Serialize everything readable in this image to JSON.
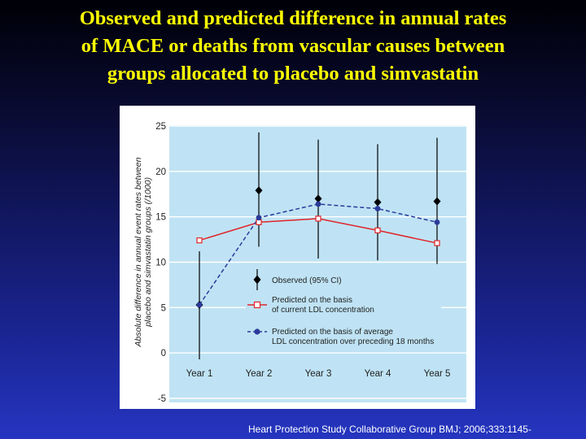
{
  "slide": {
    "title_lines": [
      "Observed and predicted difference in annual rates",
      "of MACE or deaths from vascular causes between",
      "groups allocated to placebo and simvastatin"
    ],
    "citation": "Heart Protection Study Collaborative Group BMJ; 2006;333:1145-"
  },
  "chart_data": {
    "type": "line",
    "ylabel_lines": [
      "Absolute difference in annual event rates between",
      "placebo and simvastatin groups (/1000)"
    ],
    "xlabel": "",
    "categories": [
      "Year 1",
      "Year 2",
      "Year 3",
      "Year 4",
      "Year 5"
    ],
    "yticks": [
      -5,
      0,
      5,
      10,
      15,
      20,
      25
    ],
    "ylim": [
      -5,
      25
    ],
    "grid": "horizontal",
    "legend_position": "lower-center",
    "series": [
      {
        "name": "Observed (95% CI)",
        "style": "diamond-with-ci",
        "color": "#000000",
        "values": [
          5.3,
          17.9,
          17.0,
          16.6,
          16.7
        ],
        "ci_low": [
          -0.7,
          11.7,
          10.4,
          10.2,
          9.8
        ],
        "ci_high": [
          11.2,
          24.3,
          23.5,
          23.0,
          23.7
        ]
      },
      {
        "name": "Predicted on the basis of current LDL concentration",
        "legend_lines": [
          "Predicted on the basis",
          "of current LDL concentration"
        ],
        "style": "solid-square",
        "color": "#e0262a",
        "values": [
          12.4,
          14.4,
          14.8,
          13.5,
          12.1
        ]
      },
      {
        "name": "Predicted on the basis of average LDL concentration over preceding 18 months",
        "legend_lines": [
          "Predicted on the basis of average",
          "LDL concentration over preceding 18 months"
        ],
        "style": "dashed-circle",
        "color": "#2b3a9a",
        "values": [
          5.3,
          14.9,
          16.4,
          15.9,
          14.4
        ]
      }
    ]
  }
}
